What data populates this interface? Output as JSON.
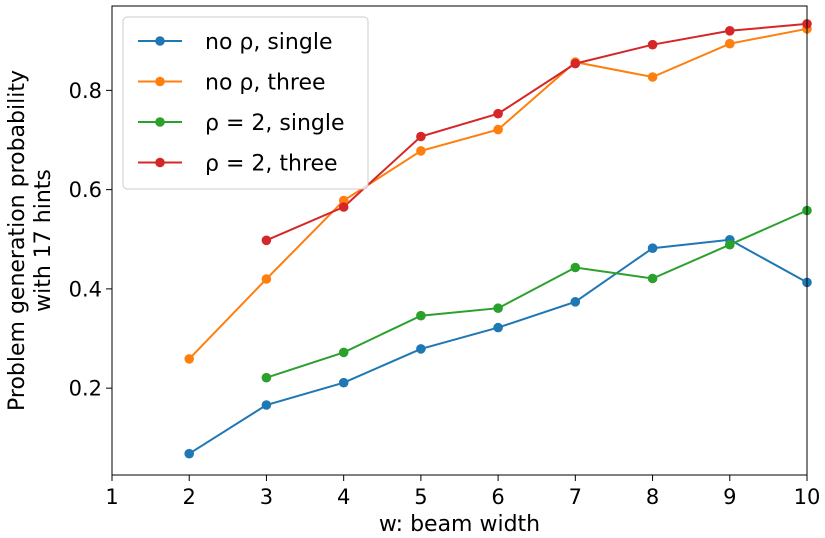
{
  "chart_data": {
    "type": "line",
    "xlabel": "w: beam width",
    "ylabel_line1": "Problem generation probability",
    "ylabel_line2": "with 17 hints",
    "xlim": [
      1,
      10
    ],
    "ylim": [
      0.025,
      0.97
    ],
    "x_ticks": [
      1,
      2,
      3,
      4,
      5,
      6,
      7,
      8,
      9,
      10
    ],
    "y_ticks": [
      0.2,
      0.4,
      0.6,
      0.8
    ],
    "x_tick_labels": [
      "1",
      "2",
      "3",
      "4",
      "5",
      "6",
      "7",
      "8",
      "9",
      "10"
    ],
    "y_tick_labels": [
      "0.2",
      "0.4",
      "0.6",
      "0.8"
    ],
    "legend_position": "top-left",
    "grid": false,
    "series": [
      {
        "name": "no ρ, single",
        "color": "#1f77b4",
        "x": [
          2,
          3,
          4,
          5,
          6,
          7,
          8,
          9,
          10
        ],
        "y": [
          0.068,
          0.166,
          0.211,
          0.279,
          0.322,
          0.374,
          0.482,
          0.499,
          0.413
        ]
      },
      {
        "name": "no ρ, three",
        "color": "#ff7f0e",
        "x": [
          2,
          3,
          4,
          5,
          6,
          7,
          8,
          9,
          10
        ],
        "y": [
          0.259,
          0.42,
          0.578,
          0.678,
          0.721,
          0.857,
          0.827,
          0.894,
          0.924
        ]
      },
      {
        "name": "ρ = 2, single",
        "color": "#2ca02c",
        "x": [
          3,
          4,
          5,
          6,
          7,
          8,
          9,
          10
        ],
        "y": [
          0.221,
          0.272,
          0.346,
          0.361,
          0.443,
          0.421,
          0.489,
          0.558
        ]
      },
      {
        "name": "ρ = 2, three",
        "color": "#d62728",
        "x": [
          3,
          4,
          5,
          6,
          7,
          8,
          9,
          10
        ],
        "y": [
          0.498,
          0.565,
          0.707,
          0.753,
          0.854,
          0.892,
          0.92,
          0.934
        ]
      }
    ]
  }
}
